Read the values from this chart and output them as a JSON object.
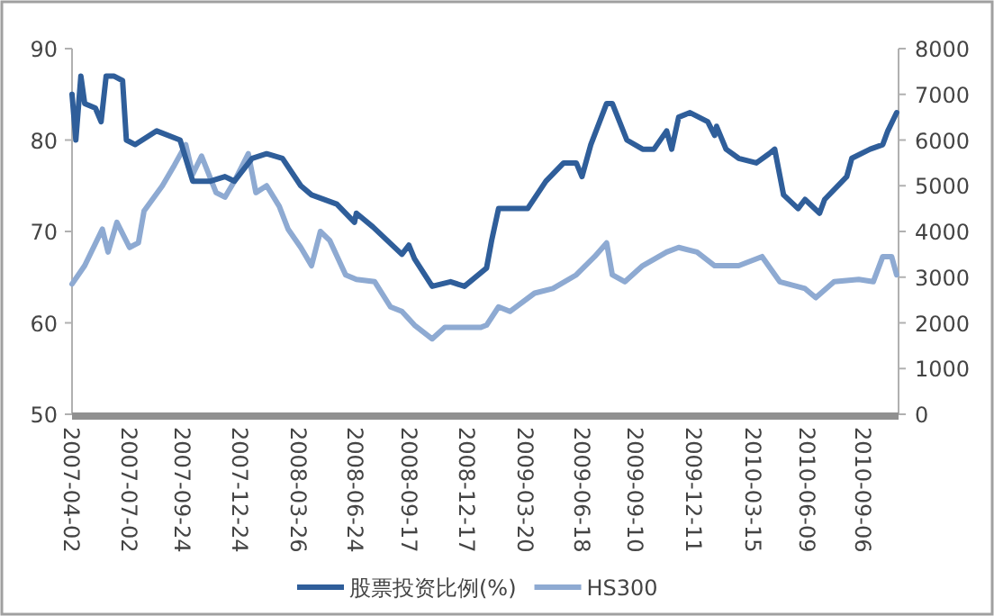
{
  "chart_data": {
    "type": "line",
    "legend": "bottom",
    "xlim": [
      "2007-04-02",
      "2010-10-31"
    ],
    "xticks": [
      "2007-04-02",
      "2007-07-02",
      "2007-09-24",
      "2007-12-24",
      "2008-03-26",
      "2008-06-24",
      "2008-09-17",
      "2008-12-17",
      "2009-03-20",
      "2009-06-18",
      "2009-09-10",
      "2009-12-11",
      "2010-03-15",
      "2010-06-09",
      "2010-09-06"
    ],
    "ylim": [
      50,
      90
    ],
    "yticks": [
      50,
      60,
      70,
      80,
      90
    ],
    "y2lim": [
      0,
      8000
    ],
    "y2ticks": [
      0,
      1000,
      2000,
      3000,
      4000,
      5000,
      6000,
      7000,
      8000
    ],
    "series": [
      {
        "name": "股票投资比例(%)",
        "color": "#2f5e9a",
        "x": [
          "2007-04-02",
          "2007-04-08",
          "2007-04-16",
          "2007-04-22",
          "2007-05-09",
          "2007-05-18",
          "2007-05-26",
          "2007-06-07",
          "2007-06-21",
          "2007-06-27",
          "2007-07-11",
          "2007-08-14",
          "2007-09-20",
          "2007-10-10",
          "2007-11-07",
          "2007-11-30",
          "2007-12-15",
          "2008-01-12",
          "2008-02-04",
          "2008-02-29",
          "2008-03-29",
          "2008-04-15",
          "2008-05-25",
          "2008-06-22",
          "2008-06-25",
          "2008-07-21",
          "2008-09-05",
          "2008-09-16",
          "2008-09-25",
          "2008-10-23",
          "2008-11-21",
          "2008-12-13",
          "2009-01-17",
          "2009-01-25",
          "2009-02-05",
          "2009-03-06",
          "2009-03-23",
          "2009-04-21",
          "2009-05-19",
          "2009-06-08",
          "2009-06-17",
          "2009-07-01",
          "2009-07-26",
          "2009-08-04",
          "2009-08-27",
          "2009-09-21",
          "2009-10-09",
          "2009-10-29",
          "2009-11-06",
          "2009-11-17",
          "2009-12-05",
          "2010-01-02",
          "2010-01-13",
          "2010-01-16",
          "2010-01-31",
          "2010-02-20",
          "2010-03-20",
          "2010-04-09",
          "2010-04-18",
          "2010-05-02",
          "2010-05-25",
          "2010-06-05",
          "2010-06-28",
          "2010-07-06",
          "2010-08-10",
          "2010-08-18",
          "2010-09-16",
          "2010-10-06",
          "2010-10-14",
          "2010-10-28"
        ],
        "values": [
          85,
          80,
          87,
          84,
          83.5,
          82,
          87,
          87,
          86.5,
          80,
          79.5,
          81,
          80,
          75.5,
          75.5,
          76,
          75.5,
          78,
          78.5,
          78,
          75,
          74,
          73,
          71,
          72,
          70.5,
          67.5,
          68.5,
          67,
          64,
          64.5,
          64,
          66,
          69,
          72.5,
          72.5,
          72.5,
          75.5,
          77.5,
          77.5,
          76,
          79.5,
          84,
          84,
          80,
          79,
          79,
          81,
          79,
          82.5,
          83,
          82,
          80.5,
          81.5,
          79,
          78,
          77.5,
          78.5,
          79,
          74,
          72.5,
          73.5,
          72,
          73.5,
          76,
          78,
          79,
          79.5,
          81,
          83
        ]
      },
      {
        "name": "HS300",
        "color": "#8eaad2",
        "axis": "y2",
        "x": [
          "2007-04-02",
          "2007-04-22",
          "2007-05-20",
          "2007-05-29",
          "2007-06-12",
          "2007-07-02",
          "2007-07-16",
          "2007-07-25",
          "2007-08-23",
          "2007-09-11",
          "2007-09-29",
          "2007-10-10",
          "2007-10-24",
          "2007-11-16",
          "2007-11-30",
          "2007-12-15",
          "2008-01-06",
          "2008-01-18",
          "2008-02-04",
          "2008-02-24",
          "2008-03-09",
          "2008-03-29",
          "2008-04-15",
          "2008-04-29",
          "2008-05-14",
          "2008-06-08",
          "2008-06-25",
          "2008-07-24",
          "2008-08-18",
          "2008-09-05",
          "2008-09-25",
          "2008-10-23",
          "2008-11-12",
          "2008-12-10",
          "2009-01-08",
          "2009-01-17",
          "2009-02-05",
          "2009-02-23",
          "2009-04-03",
          "2009-05-02",
          "2009-06-08",
          "2009-07-07",
          "2009-07-26",
          "2009-08-04",
          "2009-08-24",
          "2009-09-21",
          "2009-10-29",
          "2009-11-17",
          "2009-12-16",
          "2010-01-13",
          "2010-02-20",
          "2010-03-29",
          "2010-04-26",
          "2010-06-05",
          "2010-06-22",
          "2010-07-21",
          "2010-08-29",
          "2010-09-21",
          "2010-10-06",
          "2010-10-20",
          "2010-10-28"
        ],
        "values": [
          2850,
          3250,
          4050,
          3550,
          4200,
          3650,
          3750,
          4450,
          5000,
          5450,
          5900,
          5250,
          5650,
          4850,
          4750,
          5100,
          5700,
          4850,
          5000,
          4550,
          4050,
          3650,
          3250,
          4000,
          3800,
          3050,
          2950,
          2900,
          2350,
          2250,
          1950,
          1650,
          1900,
          1900,
          1900,
          1950,
          2350,
          2250,
          2650,
          2750,
          3050,
          3450,
          3750,
          3050,
          2900,
          3250,
          3550,
          3650,
          3550,
          3250,
          3250,
          3450,
          2900,
          2750,
          2550,
          2900,
          2950,
          2900,
          3450,
          3450,
          3050
        ]
      }
    ]
  }
}
